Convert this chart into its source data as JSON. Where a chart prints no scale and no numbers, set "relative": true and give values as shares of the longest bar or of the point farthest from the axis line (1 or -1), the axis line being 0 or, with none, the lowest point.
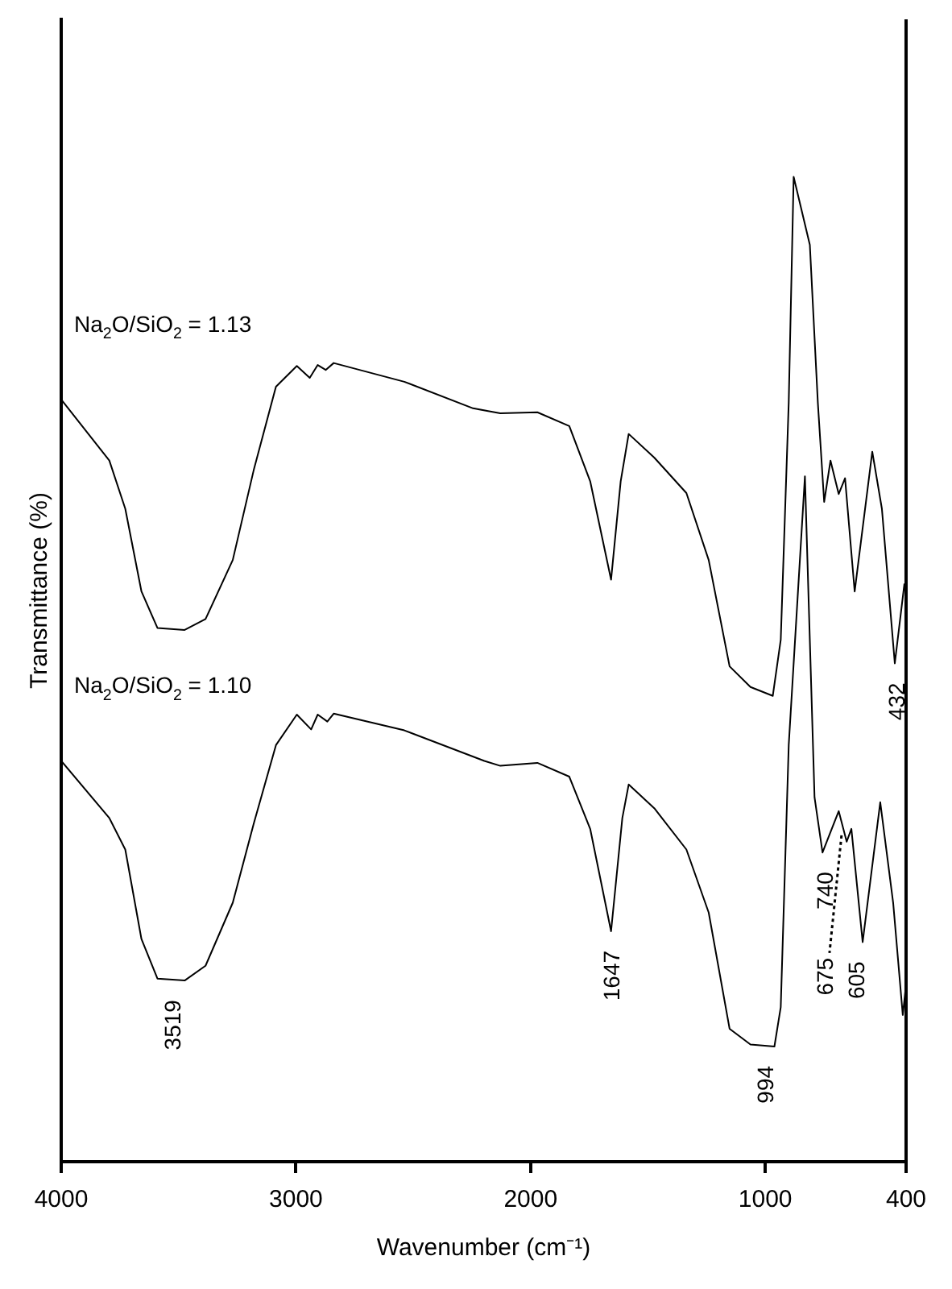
{
  "chart_data": {
    "type": "line",
    "relative": true,
    "xlabel": "Wavenumber (cm⁻¹)",
    "ylabel": "Transmittance (%)",
    "xlim": [
      4000,
      400
    ],
    "xticks": [
      4000,
      3000,
      2000,
      1000,
      400
    ],
    "grid": false,
    "legend": false,
    "marker": "none",
    "line_style": "solid",
    "series": [
      {
        "name": "Na$_{2}$O/SiO$_{2}$ = 1.13",
        "color": "#000000",
        "x": [
          4000,
          3795,
          3727,
          3658,
          3590,
          3474,
          3385,
          3269,
          3180,
          3085,
          2996,
          2941,
          2907,
          2873,
          2839,
          2538,
          2245,
          2129,
          1971,
          1835,
          1746,
          1657,
          1616,
          1582,
          1473,
          1336,
          1241,
          1152,
          1063,
          968,
          934,
          900,
          879,
          810,
          776,
          749,
          722,
          687,
          660,
          619,
          544,
          503,
          448,
          407
        ],
        "values": [
          0.774,
          0.712,
          0.663,
          0.579,
          0.542,
          0.54,
          0.551,
          0.611,
          0.702,
          0.787,
          0.808,
          0.796,
          0.809,
          0.804,
          0.811,
          0.792,
          0.765,
          0.76,
          0.761,
          0.747,
          0.691,
          0.591,
          0.691,
          0.739,
          0.715,
          0.679,
          0.611,
          0.503,
          0.482,
          0.473,
          0.53,
          0.771,
          1.0,
          0.931,
          0.771,
          0.67,
          0.712,
          0.678,
          0.694,
          0.579,
          0.721,
          0.663,
          0.506,
          0.587
        ]
      },
      {
        "name": "Na$_{2}$O/SiO$_{2}$ = 1.10",
        "color": "#000000",
        "x": [
          4000,
          3795,
          3727,
          3658,
          3590,
          3474,
          3385,
          3269,
          3180,
          3085,
          2996,
          2935,
          2907,
          2866,
          2839,
          2538,
          2197,
          2129,
          1971,
          1835,
          1746,
          1657,
          1609,
          1582,
          1473,
          1336,
          1241,
          1152,
          1063,
          961,
          934,
          900,
          831,
          790,
          756,
          687,
          653,
          633,
          585,
          510,
          455,
          414,
          400
        ],
        "values": [
          0.407,
          0.349,
          0.317,
          0.226,
          0.186,
          0.184,
          0.199,
          0.263,
          0.343,
          0.423,
          0.454,
          0.439,
          0.454,
          0.447,
          0.455,
          0.438,
          0.407,
          0.402,
          0.405,
          0.391,
          0.338,
          0.234,
          0.349,
          0.383,
          0.359,
          0.317,
          0.253,
          0.135,
          0.119,
          0.117,
          0.157,
          0.423,
          0.696,
          0.37,
          0.314,
          0.356,
          0.325,
          0.338,
          0.223,
          0.365,
          0.263,
          0.149,
          0.18
        ]
      }
    ],
    "annotations": [
      {
        "text": "3519",
        "x": 3519,
        "y": 0.184
      },
      {
        "text": "1647",
        "x": 1647,
        "y": 0.234
      },
      {
        "text": "994",
        "x": 994,
        "y": 0.117
      },
      {
        "text": "740",
        "x": 740,
        "y": 0.314
      },
      {
        "text": "675",
        "x": 675,
        "y": 0.338
      },
      {
        "text": "605",
        "x": 605,
        "y": 0.223
      },
      {
        "text": "432",
        "x": 432,
        "y": 0.506
      }
    ]
  }
}
